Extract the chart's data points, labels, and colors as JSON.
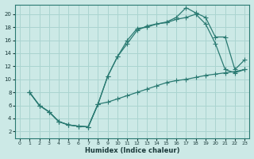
{
  "xlabel": "Humidex (Indice chaleur)",
  "ylabel": "",
  "bg_color": "#cce9e6",
  "grid_color": "#aad4d0",
  "line_color": "#2a7a72",
  "xlim": [
    -0.5,
    23.5
  ],
  "ylim": [
    1.0,
    21.5
  ],
  "xticks": [
    0,
    1,
    2,
    3,
    4,
    5,
    6,
    7,
    8,
    9,
    10,
    11,
    12,
    13,
    14,
    15,
    16,
    17,
    18,
    19,
    20,
    21,
    22,
    23
  ],
  "yticks": [
    2,
    4,
    6,
    8,
    10,
    12,
    14,
    16,
    18,
    20
  ],
  "line1_x": [
    1,
    2,
    3,
    4,
    5,
    6,
    7,
    8,
    9,
    10,
    11,
    12,
    13,
    14,
    15,
    16,
    17,
    18,
    19,
    20,
    21,
    22,
    23
  ],
  "line1_y": [
    8,
    6,
    5,
    3.5,
    3.0,
    2.8,
    2.7,
    6.2,
    10.5,
    13.5,
    16.0,
    17.8,
    18.0,
    18.5,
    18.8,
    19.5,
    21.0,
    20.2,
    19.5,
    16.5,
    16.5,
    11.5,
    13.0
  ],
  "line2_x": [
    1,
    2,
    3,
    4,
    5,
    6,
    7,
    8,
    9,
    10,
    11,
    12,
    13,
    14,
    15,
    16,
    17,
    18,
    19,
    20,
    21,
    22,
    23
  ],
  "line2_y": [
    8,
    6,
    5,
    3.5,
    3.0,
    2.8,
    2.7,
    6.2,
    10.5,
    13.5,
    15.5,
    17.5,
    18.2,
    18.5,
    18.7,
    19.2,
    19.5,
    20.0,
    18.5,
    15.5,
    11.5,
    11.0,
    11.5
  ],
  "line3_x": [
    1,
    2,
    3,
    4,
    5,
    6,
    7,
    8,
    9,
    10,
    11,
    12,
    13,
    14,
    15,
    16,
    17,
    18,
    19,
    20,
    21,
    22,
    23
  ],
  "line3_y": [
    8,
    6,
    5,
    3.5,
    3.0,
    2.8,
    2.7,
    6.2,
    6.5,
    7.0,
    7.5,
    8.0,
    8.5,
    9.0,
    9.5,
    9.8,
    10.0,
    10.3,
    10.6,
    10.8,
    11.0,
    11.2,
    11.5
  ]
}
